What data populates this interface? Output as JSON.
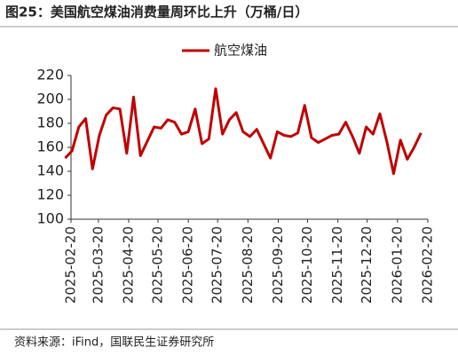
{
  "chart_data": {
    "type": "line",
    "title": "图25：美国航空煤油消费量周环比上升（万桶/日）",
    "source": "资料来源：iFind，国联民生证券研究所",
    "x": [
      "2025-02-14",
      "2025-02-21",
      "2025-02-28",
      "2025-03-07",
      "2025-03-14",
      "2025-03-21",
      "2025-03-28",
      "2025-04-04",
      "2025-04-11",
      "2025-04-18",
      "2025-04-25",
      "2025-05-02",
      "2025-05-09",
      "2025-05-16",
      "2025-05-23",
      "2025-05-30",
      "2025-06-06",
      "2025-06-13",
      "2025-06-20",
      "2025-06-27",
      "2025-07-04",
      "2025-07-11",
      "2025-07-18",
      "2025-07-25",
      "2025-08-01",
      "2025-08-08",
      "2025-08-15",
      "2025-08-22",
      "2025-08-29",
      "2025-09-05",
      "2025-09-12",
      "2025-09-19",
      "2025-09-26",
      "2025-10-03",
      "2025-10-10",
      "2025-10-17",
      "2025-10-24",
      "2025-10-31",
      "2025-11-07",
      "2025-11-14",
      "2025-11-21",
      "2025-11-28",
      "2025-12-05",
      "2025-12-12",
      "2025-12-19",
      "2025-12-26",
      "2026-01-02",
      "2026-01-09",
      "2026-01-16",
      "2026-01-23",
      "2026-01-30",
      "2026-02-06",
      "2026-02-13"
    ],
    "series": [
      {
        "name": "航空煤油",
        "color": "#c00000",
        "values": [
          151,
          157,
          177,
          184,
          142,
          170,
          187,
          193,
          192,
          155,
          202,
          153,
          165,
          177,
          176,
          183,
          181,
          171,
          173,
          192,
          163,
          167,
          209,
          171,
          183,
          189,
          173,
          169,
          175,
          163,
          151,
          173,
          170,
          169,
          172,
          195,
          168,
          164,
          167,
          170,
          171,
          181,
          169,
          155,
          177,
          171,
          188,
          165,
          138,
          166,
          150,
          160,
          172
        ]
      }
    ],
    "xlim": [
      "2025-02-20",
      "2026-02-20"
    ],
    "xticks": [
      "2025-02-20",
      "2025-03-20",
      "2025-04-20",
      "2025-05-20",
      "2025-06-20",
      "2025-07-20",
      "2025-08-20",
      "2025-09-20",
      "2025-10-20",
      "2025-11-20",
      "2025-12-20",
      "2026-01-20",
      "2026-02-20"
    ],
    "ylim": [
      100,
      220
    ],
    "yticks": [
      100,
      120,
      140,
      160,
      180,
      200,
      220
    ],
    "grid": false
  }
}
